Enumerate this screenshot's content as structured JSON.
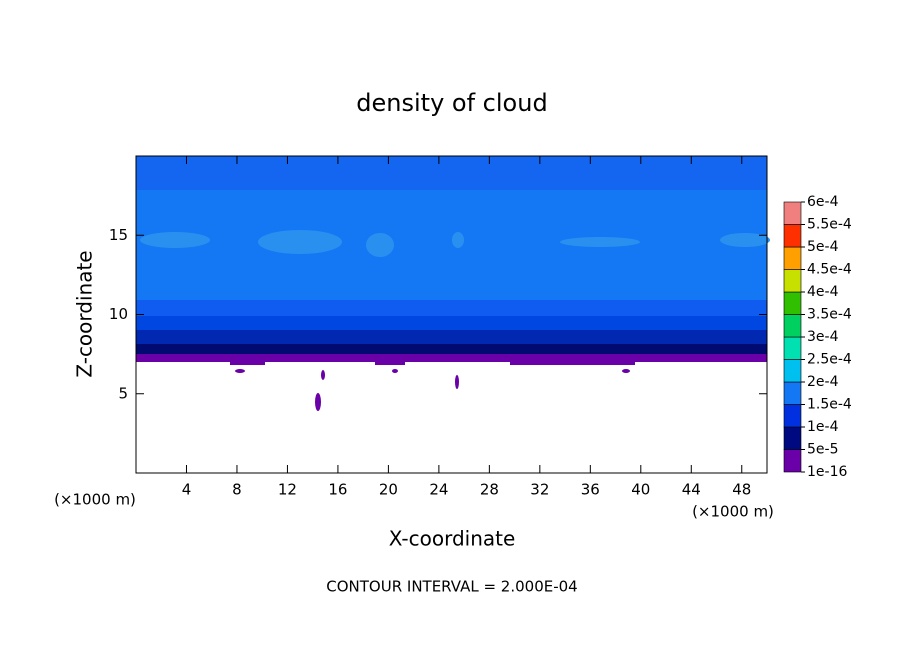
{
  "chart_data": {
    "type": "contour",
    "title": "density of cloud",
    "x_label": "X-coordinate",
    "y_label": "Z-coordinate",
    "x_unit": "(×1000 m)",
    "y_unit": "(×1000 m)",
    "footer": "CONTOUR INTERVAL = 2.000E-04",
    "xlim": [
      0,
      50
    ],
    "ylim": [
      0,
      20
    ],
    "xticks": [
      4,
      8,
      12,
      16,
      20,
      24,
      28,
      32,
      36,
      40,
      44,
      48
    ],
    "yticks": [
      5,
      10,
      15
    ],
    "colorbar": {
      "levels": [
        {
          "value": 1e-16,
          "label": "1e-16"
        },
        {
          "value": 5e-05,
          "label": "5e-5"
        },
        {
          "value": 0.0001,
          "label": "1e-4"
        },
        {
          "value": 0.00015,
          "label": "1.5e-4"
        },
        {
          "value": 0.0002,
          "label": "2e-4"
        },
        {
          "value": 0.00025,
          "label": "2.5e-4"
        },
        {
          "value": 0.0003,
          "label": "3e-4"
        },
        {
          "value": 0.00035,
          "label": "3.5e-4"
        },
        {
          "value": 0.0004,
          "label": "4e-4"
        },
        {
          "value": 0.00045,
          "label": "4.5e-4"
        },
        {
          "value": 0.0005,
          "label": "5e-4"
        },
        {
          "value": 0.00055,
          "label": "5.5e-4"
        },
        {
          "value": 0.0006,
          "label": "6e-4"
        }
      ],
      "colors": [
        "#6a00a8",
        "#000a80",
        "#0030e0",
        "#1478f5",
        "#00c0f0",
        "#00e0b0",
        "#00d060",
        "#30c000",
        "#c8e000",
        "#ffa000",
        "#ff3000",
        "#f08080"
      ]
    }
  }
}
